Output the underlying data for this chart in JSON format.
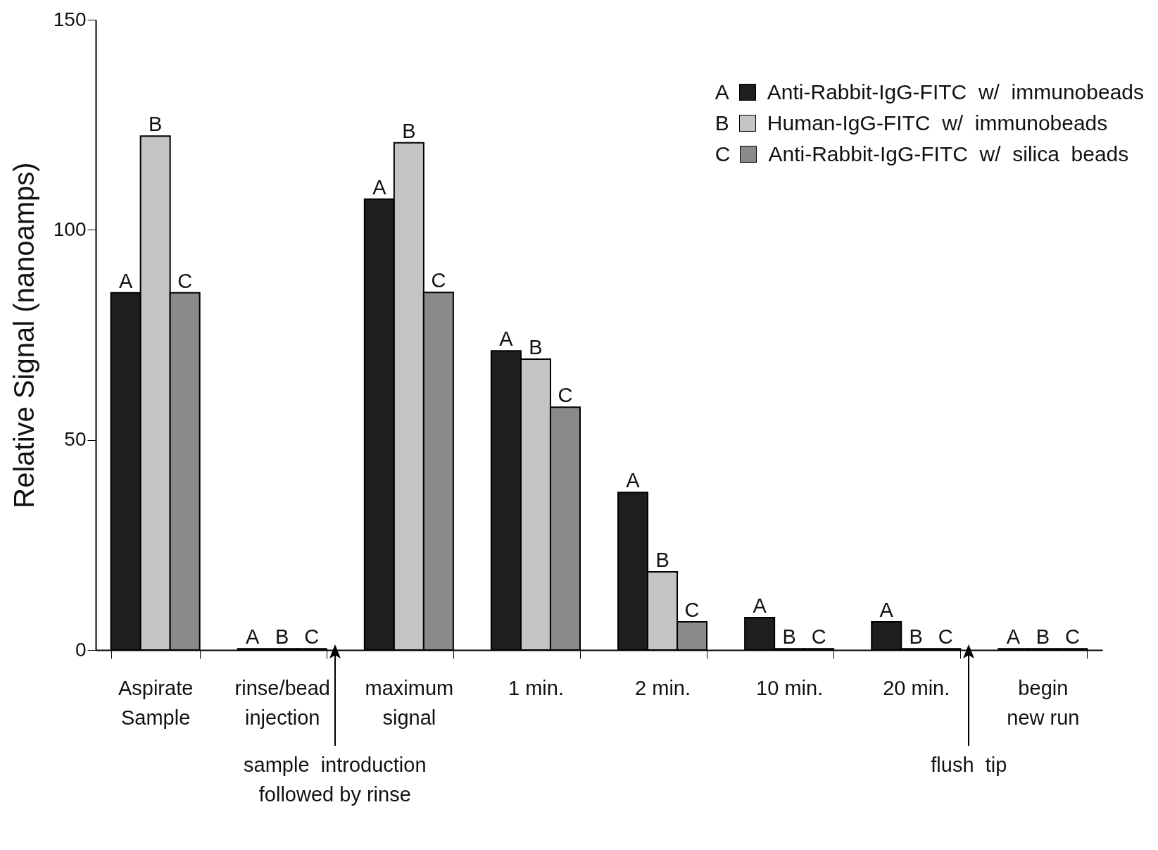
{
  "chart_data": {
    "type": "bar",
    "ylabel": "Relative Signal (nanoamps)",
    "categories": [
      "Aspirate Sample",
      "rinse/bead injection",
      "maximum signal",
      "1 min.",
      "2 min.",
      "10 min.",
      "20 min.",
      "begin new run"
    ],
    "series": [
      {
        "name": "Anti-Rabbit-IgG-FITC  w/  immunobeads",
        "color": "#1e1e1e",
        "values": [
          85,
          0.3,
          107.3,
          71.2,
          37.5,
          7.7,
          6.7,
          0.3
        ],
        "value_labels": [
          "A",
          "A",
          "A",
          "A",
          "A",
          "A",
          "A",
          "A"
        ]
      },
      {
        "name": "Human-IgG-FITC  w/  immunobeads",
        "color": "#c4c4c4",
        "values": [
          122.3,
          0.3,
          120.7,
          69.2,
          18.6,
          0.3,
          0.3,
          0.3
        ],
        "value_labels": [
          "B",
          "B",
          "B",
          "B",
          "B",
          "B",
          "B",
          "B"
        ]
      },
      {
        "name": "Anti-Rabbit-IgG-FITC  w/  silica  beads",
        "color": "#8a8a8a",
        "values": [
          85,
          0.3,
          85.1,
          57.8,
          6.7,
          0.3,
          0.3,
          0.3
        ],
        "value_labels": [
          "C",
          "C",
          "C",
          "C",
          "C",
          "C",
          "C",
          "C"
        ]
      }
    ],
    "ylim": [
      0,
      150
    ],
    "yticks": [
      0,
      50,
      100,
      150
    ],
    "grid": false,
    "legend": "top right",
    "annotations": [
      "sample  introduction followed by rinse",
      "flush  tip"
    ]
  }
}
